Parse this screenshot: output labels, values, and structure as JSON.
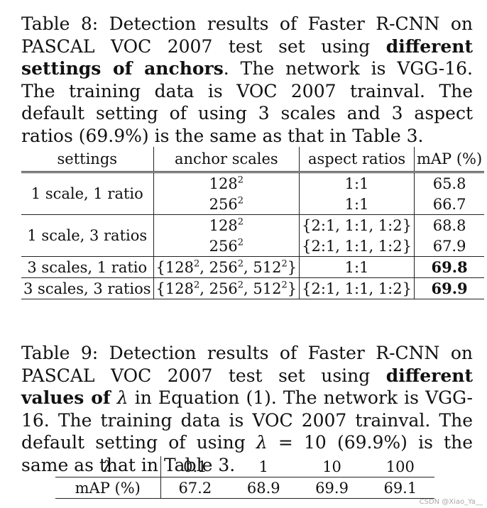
{
  "table8": {
    "caption": {
      "prefix": "Table 8: Detection results of Faster R-CNN on PASCAL VOC 2007 test set using ",
      "emph": "different settings of anchors",
      "suffix": ". The network is VGG-16. The training data is VOC 2007 trainval. The default setting of using 3 scales and 3 aspect ratios (69.9%) is the same as that in Table 3."
    },
    "headers": [
      "settings",
      "anchor scales",
      "aspect ratios",
      "mAP (%)"
    ],
    "rows": [
      {
        "setting": "1 scale, 1 ratio",
        "scale": "128",
        "ratio": "1:1",
        "map": "65.8"
      },
      {
        "setting": "",
        "scale": "256",
        "ratio": "1:1",
        "map": "66.7"
      },
      {
        "setting": "1 scale, 3 ratios",
        "scale": "128",
        "ratio": "{2:1, 1:1, 1:2}",
        "map": "68.8"
      },
      {
        "setting": "",
        "scale": "256",
        "ratio": "{2:1, 1:1, 1:2}",
        "map": "67.9"
      },
      {
        "setting": "3 scales, 1 ratio",
        "scale_parts": [
          "128",
          "256",
          "512"
        ],
        "ratio": "1:1",
        "map": "69.8"
      },
      {
        "setting": "3 scales, 3 ratios",
        "scale_parts": [
          "128",
          "256",
          "512"
        ],
        "ratio": "{2:1, 1:1, 1:2}",
        "map": "69.9"
      }
    ],
    "superscript": "2"
  },
  "table9": {
    "caption": {
      "prefix": "Table 9: Detection results of Faster R-CNN on PASCAL VOC 2007 test set using ",
      "emph": "different values of",
      "lambda": "λ",
      "middle": " in Equation (1). The network is VGG-16. The training data is VOC 2007 trainval. The default setting of using ",
      "equation": " = 10",
      "suffix": " (69.9%) is the same as that in Table 3."
    },
    "header_label": "λ",
    "lambdas": [
      "0.1",
      "1",
      "10",
      "100"
    ],
    "row_label": "mAP (%)",
    "values": [
      "67.2",
      "68.9",
      "69.9",
      "69.1"
    ]
  },
  "watermark": "CSDN @Xiao_Ya__"
}
